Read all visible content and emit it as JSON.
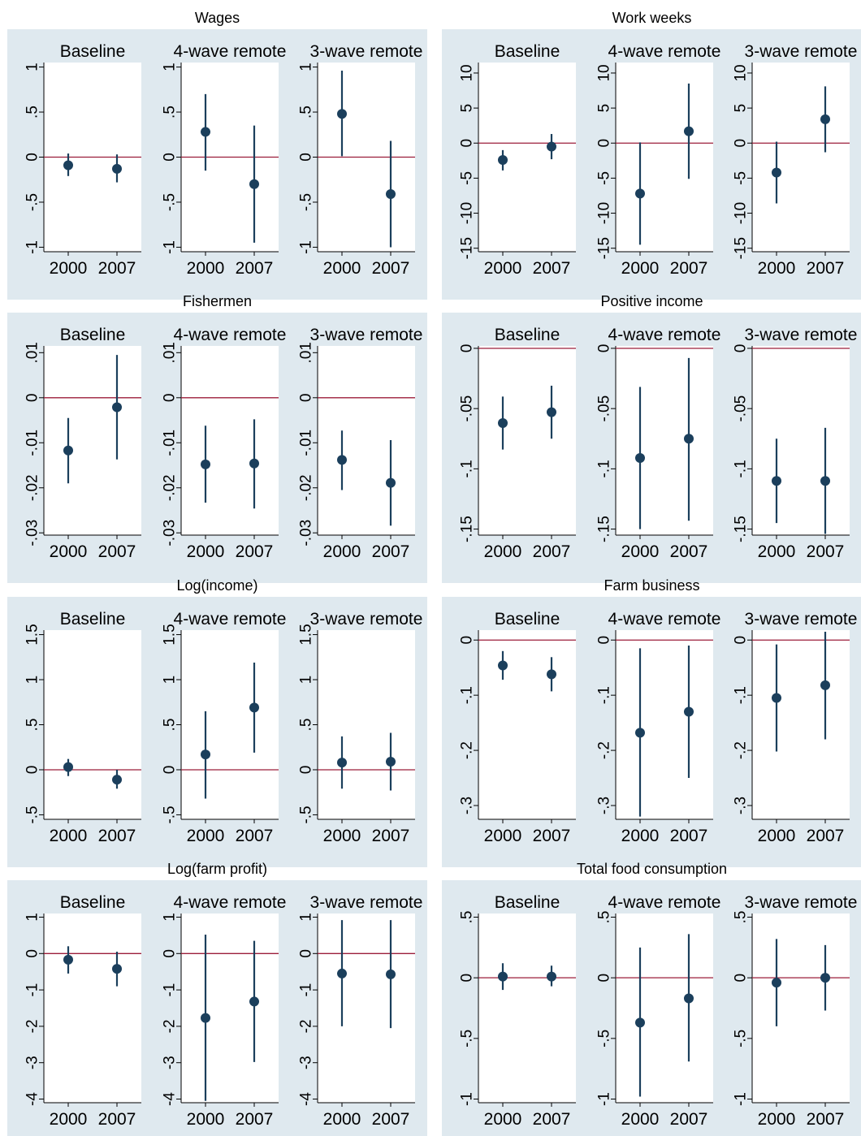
{
  "colors": {
    "panel_bg": "#dfe9ef",
    "plot_bg": "#ffffff",
    "marker": "#1b3f5c",
    "zero_line": "#9b1d3a",
    "axis": "#000000",
    "grid": "none"
  },
  "chart_data": [
    {
      "type": "scatter",
      "title": "Wages",
      "panel_titles": [
        "Baseline",
        "4-wave remote",
        "3-wave remote"
      ],
      "categories": [
        "2000",
        "2007"
      ],
      "ylim": [
        -1.05,
        1.05
      ],
      "yticks": [
        {
          "v": 1,
          "label": "1"
        },
        {
          "v": 0.5,
          "label": ".5"
        },
        {
          "v": 0,
          "label": "0"
        },
        {
          "v": -0.5,
          "label": "-.5"
        },
        {
          "v": -1,
          "label": "-1"
        }
      ],
      "zero_line": 0,
      "series": [
        {
          "panel": "Baseline",
          "points": [
            {
              "x": "2000",
              "y": -0.09,
              "lo": -0.21,
              "hi": 0.04
            },
            {
              "x": "2007",
              "y": -0.13,
              "lo": -0.28,
              "hi": 0.03
            }
          ]
        },
        {
          "panel": "4-wave remote",
          "points": [
            {
              "x": "2000",
              "y": 0.28,
              "lo": -0.15,
              "hi": 0.7
            },
            {
              "x": "2007",
              "y": -0.3,
              "lo": -0.95,
              "hi": 0.35
            }
          ]
        },
        {
          "panel": "3-wave remote",
          "points": [
            {
              "x": "2000",
              "y": 0.48,
              "lo": 0.01,
              "hi": 0.96
            },
            {
              "x": "2007",
              "y": -0.41,
              "lo": -1.0,
              "hi": 0.18
            }
          ]
        }
      ]
    },
    {
      "type": "scatter",
      "title": "Work weeks",
      "panel_titles": [
        "Baseline",
        "4-wave remote",
        "3-wave remote"
      ],
      "categories": [
        "2000",
        "2007"
      ],
      "ylim": [
        -15.5,
        11.5
      ],
      "yticks": [
        {
          "v": 10,
          "label": "10"
        },
        {
          "v": 5,
          "label": "5"
        },
        {
          "v": 0,
          "label": "0"
        },
        {
          "v": -5,
          "label": "-5"
        },
        {
          "v": -10,
          "label": "-10"
        },
        {
          "v": -15,
          "label": "-15"
        }
      ],
      "zero_line": 0,
      "series": [
        {
          "panel": "Baseline",
          "points": [
            {
              "x": "2000",
              "y": -2.4,
              "lo": -3.9,
              "hi": -1.0
            },
            {
              "x": "2007",
              "y": -0.5,
              "lo": -2.3,
              "hi": 1.3
            }
          ]
        },
        {
          "panel": "4-wave remote",
          "points": [
            {
              "x": "2000",
              "y": -7.2,
              "lo": -14.5,
              "hi": 0.1
            },
            {
              "x": "2007",
              "y": 1.7,
              "lo": -5.1,
              "hi": 8.5
            }
          ]
        },
        {
          "panel": "3-wave remote",
          "points": [
            {
              "x": "2000",
              "y": -4.2,
              "lo": -8.6,
              "hi": 0.2
            },
            {
              "x": "2007",
              "y": 3.4,
              "lo": -1.3,
              "hi": 8.1
            }
          ]
        }
      ]
    },
    {
      "type": "scatter",
      "title": "Fishermen",
      "panel_titles": [
        "Baseline",
        "4-wave remote",
        "3-wave remote"
      ],
      "categories": [
        "2000",
        "2007"
      ],
      "ylim": [
        -0.0305,
        0.0115
      ],
      "yticks": [
        {
          "v": 0.01,
          "label": ".01"
        },
        {
          "v": 0,
          "label": "0"
        },
        {
          "v": -0.01,
          "label": "-.01"
        },
        {
          "v": -0.02,
          "label": "-.02"
        },
        {
          "v": -0.03,
          "label": "-.03"
        }
      ],
      "zero_line": 0,
      "series": [
        {
          "panel": "Baseline",
          "points": [
            {
              "x": "2000",
              "y": -0.0117,
              "lo": -0.019,
              "hi": -0.0045
            },
            {
              "x": "2007",
              "y": -0.0021,
              "lo": -0.0137,
              "hi": 0.0095
            }
          ]
        },
        {
          "panel": "4-wave remote",
          "points": [
            {
              "x": "2000",
              "y": -0.0148,
              "lo": -0.0233,
              "hi": -0.0062
            },
            {
              "x": "2007",
              "y": -0.0146,
              "lo": -0.0246,
              "hi": -0.0048
            }
          ]
        },
        {
          "panel": "3-wave remote",
          "points": [
            {
              "x": "2000",
              "y": -0.0138,
              "lo": -0.0205,
              "hi": -0.0073
            },
            {
              "x": "2007",
              "y": -0.0189,
              "lo": -0.0284,
              "hi": -0.0094
            }
          ]
        }
      ]
    },
    {
      "type": "scatter",
      "title": "Positive income",
      "panel_titles": [
        "Baseline",
        "4-wave remote",
        "3-wave remote"
      ],
      "categories": [
        "2000",
        "2007"
      ],
      "ylim": [
        -0.155,
        0.002
      ],
      "yticks": [
        {
          "v": 0,
          "label": "0"
        },
        {
          "v": -0.05,
          "label": "-.05"
        },
        {
          "v": -0.1,
          "label": "-.1"
        },
        {
          "v": -0.15,
          "label": "-.15"
        }
      ],
      "zero_line": 0,
      "series": [
        {
          "panel": "Baseline",
          "points": [
            {
              "x": "2000",
              "y": -0.062,
              "lo": -0.084,
              "hi": -0.04
            },
            {
              "x": "2007",
              "y": -0.053,
              "lo": -0.075,
              "hi": -0.031
            }
          ]
        },
        {
          "panel": "4-wave remote",
          "points": [
            {
              "x": "2000",
              "y": -0.091,
              "lo": -0.15,
              "hi": -0.032
            },
            {
              "x": "2007",
              "y": -0.075,
              "lo": -0.143,
              "hi": -0.008
            }
          ]
        },
        {
          "panel": "3-wave remote",
          "points": [
            {
              "x": "2000",
              "y": -0.11,
              "lo": -0.145,
              "hi": -0.075
            },
            {
              "x": "2007",
              "y": -0.11,
              "lo": -0.154,
              "hi": -0.066
            }
          ]
        }
      ]
    },
    {
      "type": "scatter",
      "title": "Log(income)",
      "panel_titles": [
        "Baseline",
        "4-wave remote",
        "3-wave remote"
      ],
      "categories": [
        "2000",
        "2007"
      ],
      "ylim": [
        -0.55,
        1.55
      ],
      "yticks": [
        {
          "v": 1.5,
          "label": "1.5"
        },
        {
          "v": 1,
          "label": "1"
        },
        {
          "v": 0.5,
          "label": ".5"
        },
        {
          "v": 0,
          "label": "0"
        },
        {
          "v": -0.5,
          "label": "-.5"
        }
      ],
      "zero_line": 0,
      "series": [
        {
          "panel": "Baseline",
          "points": [
            {
              "x": "2000",
              "y": 0.03,
              "lo": -0.07,
              "hi": 0.12
            },
            {
              "x": "2007",
              "y": -0.11,
              "lo": -0.21,
              "hi": 0.0
            }
          ]
        },
        {
          "panel": "4-wave remote",
          "points": [
            {
              "x": "2000",
              "y": 0.17,
              "lo": -0.32,
              "hi": 0.65
            },
            {
              "x": "2007",
              "y": 0.69,
              "lo": 0.19,
              "hi": 1.19
            }
          ]
        },
        {
          "panel": "3-wave remote",
          "points": [
            {
              "x": "2000",
              "y": 0.08,
              "lo": -0.21,
              "hi": 0.37
            },
            {
              "x": "2007",
              "y": 0.09,
              "lo": -0.23,
              "hi": 0.41
            }
          ]
        }
      ]
    },
    {
      "type": "scatter",
      "title": "Farm business",
      "panel_titles": [
        "Baseline",
        "4-wave remote",
        "3-wave remote"
      ],
      "categories": [
        "2000",
        "2007"
      ],
      "ylim": [
        -0.325,
        0.018
      ],
      "yticks": [
        {
          "v": 0,
          "label": "0"
        },
        {
          "v": -0.1,
          "label": "-.1"
        },
        {
          "v": -0.2,
          "label": "-.2"
        },
        {
          "v": -0.3,
          "label": "-.3"
        }
      ],
      "zero_line": 0,
      "series": [
        {
          "panel": "Baseline",
          "points": [
            {
              "x": "2000",
              "y": -0.046,
              "lo": -0.072,
              "hi": -0.02
            },
            {
              "x": "2007",
              "y": -0.062,
              "lo": -0.093,
              "hi": -0.031
            }
          ]
        },
        {
          "panel": "4-wave remote",
          "points": [
            {
              "x": "2000",
              "y": -0.168,
              "lo": -0.32,
              "hi": -0.015
            },
            {
              "x": "2007",
              "y": -0.13,
              "lo": -0.25,
              "hi": -0.01
            }
          ]
        },
        {
          "panel": "3-wave remote",
          "points": [
            {
              "x": "2000",
              "y": -0.105,
              "lo": -0.202,
              "hi": -0.008
            },
            {
              "x": "2007",
              "y": -0.082,
              "lo": -0.18,
              "hi": 0.015
            }
          ]
        }
      ]
    },
    {
      "type": "scatter",
      "title": "Log(farm profit)",
      "panel_titles": [
        "Baseline",
        "4-wave remote",
        "3-wave remote"
      ],
      "categories": [
        "2000",
        "2007"
      ],
      "ylim": [
        -4.1,
        1.1
      ],
      "yticks": [
        {
          "v": 1,
          "label": "1"
        },
        {
          "v": 0,
          "label": "0"
        },
        {
          "v": -1,
          "label": "-1"
        },
        {
          "v": -2,
          "label": "-2"
        },
        {
          "v": -3,
          "label": "-3"
        },
        {
          "v": -4,
          "label": "-4"
        }
      ],
      "zero_line": 0,
      "series": [
        {
          "panel": "Baseline",
          "points": [
            {
              "x": "2000",
              "y": -0.17,
              "lo": -0.55,
              "hi": 0.2
            },
            {
              "x": "2007",
              "y": -0.42,
              "lo": -0.9,
              "hi": 0.05
            }
          ]
        },
        {
          "panel": "4-wave remote",
          "points": [
            {
              "x": "2000",
              "y": -1.77,
              "lo": -4.05,
              "hi": 0.52
            },
            {
              "x": "2007",
              "y": -1.32,
              "lo": -2.98,
              "hi": 0.35
            }
          ]
        },
        {
          "panel": "3-wave remote",
          "points": [
            {
              "x": "2000",
              "y": -0.55,
              "lo": -2.0,
              "hi": 0.92
            },
            {
              "x": "2007",
              "y": -0.57,
              "lo": -2.05,
              "hi": 0.92
            }
          ]
        }
      ]
    },
    {
      "type": "scatter",
      "title": "Total food consumption",
      "panel_titles": [
        "Baseline",
        "4-wave remote",
        "3-wave remote"
      ],
      "categories": [
        "2000",
        "2007"
      ],
      "ylim": [
        -1.03,
        0.53
      ],
      "yticks": [
        {
          "v": 0.5,
          "label": ".5"
        },
        {
          "v": 0,
          "label": "0"
        },
        {
          "v": -0.5,
          "label": "-.5"
        },
        {
          "v": -1,
          "label": "-1"
        }
      ],
      "zero_line": 0,
      "series": [
        {
          "panel": "Baseline",
          "points": [
            {
              "x": "2000",
              "y": 0.01,
              "lo": -0.1,
              "hi": 0.12
            },
            {
              "x": "2007",
              "y": 0.01,
              "lo": -0.07,
              "hi": 0.1
            }
          ]
        },
        {
          "panel": "4-wave remote",
          "points": [
            {
              "x": "2000",
              "y": -0.37,
              "lo": -0.98,
              "hi": 0.25
            },
            {
              "x": "2007",
              "y": -0.17,
              "lo": -0.69,
              "hi": 0.36
            }
          ]
        },
        {
          "panel": "3-wave remote",
          "points": [
            {
              "x": "2000",
              "y": -0.04,
              "lo": -0.4,
              "hi": 0.32
            },
            {
              "x": "2007",
              "y": 0.0,
              "lo": -0.27,
              "hi": 0.27
            }
          ]
        }
      ]
    }
  ]
}
